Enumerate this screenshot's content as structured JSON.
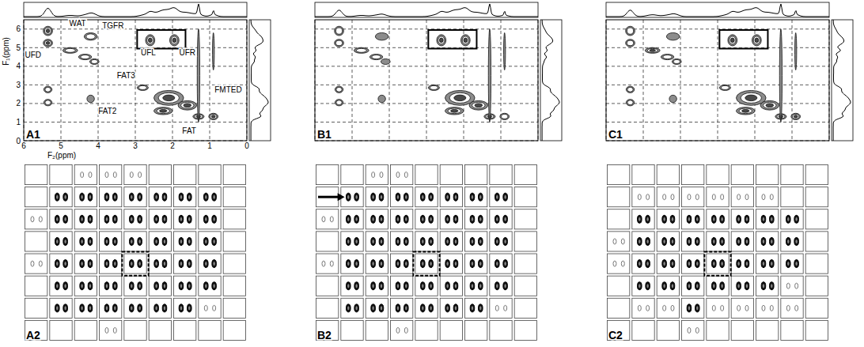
{
  "chart_data": [
    {
      "type": "contour",
      "label": "A1",
      "xlabel": "F₂(ppm)",
      "ylabel": "F₁(ppm)",
      "xlim": [
        6,
        0
      ],
      "ylim": [
        0,
        6.5
      ],
      "xticks": [
        6,
        5,
        4,
        3,
        2,
        1,
        0
      ],
      "yticks": [
        0,
        1,
        2,
        3,
        4,
        5,
        6
      ],
      "grid": true,
      "peaks": {
        "x": [
          5.35,
          5.35,
          5.35,
          5.35,
          4.75,
          4.35,
          4.1,
          4.2,
          4.2,
          2.6,
          1.95,
          2.8,
          2.1,
          2.25,
          1.6,
          1.3,
          0.9,
          1.3,
          0.9
        ],
        "y": [
          5.9,
          5.25,
          2.75,
          2.05,
          4.85,
          4.5,
          4.25,
          5.6,
          2.25,
          5.4,
          5.4,
          2.85,
          2.3,
          1.6,
          1.9,
          1.3,
          1.3,
          3.5,
          4.8
        ],
        "width": [
          0.25,
          0.25,
          0.22,
          0.22,
          0.4,
          0.35,
          0.25,
          0.35,
          0.2,
          0.25,
          0.25,
          0.3,
          0.8,
          0.5,
          0.5,
          0.3,
          0.25,
          0.07,
          0.05
        ],
        "height": [
          0.5,
          0.4,
          0.35,
          0.35,
          0.3,
          0.3,
          0.3,
          0.4,
          0.4,
          0.6,
          0.6,
          0.3,
          0.8,
          0.4,
          0.5,
          0.3,
          0.35,
          5.0,
          2.0
        ],
        "values": [
          3,
          3,
          2,
          2,
          2,
          2,
          2,
          2,
          1,
          3,
          3,
          2,
          3,
          3,
          3,
          3,
          3,
          1,
          1
        ]
      },
      "highlight": {
        "x": [
          2.95,
          1.65
        ],
        "y": [
          4.95,
          5.95
        ]
      },
      "annotations": [
        {
          "text": "UFD",
          "x": 5.75,
          "y": 4.45
        },
        {
          "text": "WAT",
          "x": 4.55,
          "y": 6.15
        },
        {
          "text": "TGFR",
          "x": 3.6,
          "y": 6.05
        },
        {
          "text": "UFL",
          "x": 2.65,
          "y": 4.6
        },
        {
          "text": "UFR",
          "x": 1.6,
          "y": 4.6
        },
        {
          "text": "FAT3",
          "x": 3.25,
          "y": 3.35
        },
        {
          "text": "FAT2",
          "x": 3.75,
          "y": 1.45
        },
        {
          "text": "FAT",
          "x": 1.55,
          "y": 0.4
        },
        {
          "text": "FMTED",
          "x": 0.5,
          "y": 2.6
        }
      ]
    },
    {
      "type": "contour",
      "label": "B1",
      "xlim": [
        6,
        0
      ],
      "ylim": [
        0,
        6.5
      ],
      "xticks": [
        6,
        5,
        4,
        3,
        2,
        1,
        0
      ],
      "yticks": [
        0,
        1,
        2,
        3,
        4,
        5,
        6
      ],
      "grid": true,
      "tick_labels": false,
      "peaks": {
        "x": [
          5.35,
          5.35,
          5.35,
          5.35,
          4.75,
          4.35,
          4.1,
          4.2,
          4.2,
          2.6,
          1.95,
          2.8,
          2.1,
          2.25,
          1.6,
          1.3,
          0.9,
          1.3,
          0.9
        ],
        "y": [
          5.9,
          5.25,
          2.75,
          2.05,
          4.85,
          4.5,
          4.25,
          5.6,
          2.25,
          5.4,
          5.4,
          2.85,
          2.3,
          1.6,
          1.9,
          1.3,
          1.3,
          3.5,
          4.8
        ],
        "width": [
          0.25,
          0.25,
          0.22,
          0.22,
          0.4,
          0.35,
          0.25,
          0.35,
          0.2,
          0.25,
          0.25,
          0.3,
          0.8,
          0.5,
          0.5,
          0.3,
          0.25,
          0.07,
          0.05
        ],
        "height": [
          0.5,
          0.4,
          0.35,
          0.35,
          0.3,
          0.3,
          0.3,
          0.4,
          0.4,
          0.6,
          0.6,
          0.3,
          0.8,
          0.4,
          0.5,
          0.3,
          0.35,
          5.0,
          2.0
        ],
        "values": [
          2,
          2,
          2,
          2,
          2,
          2,
          1,
          1,
          1,
          3,
          3,
          2,
          3,
          3,
          3,
          3,
          2,
          1,
          1
        ]
      },
      "highlight": {
        "x": [
          2.95,
          1.65
        ],
        "y": [
          4.95,
          5.95
        ]
      }
    },
    {
      "type": "contour",
      "label": "C1",
      "xlim": [
        6,
        0
      ],
      "ylim": [
        0,
        6.5
      ],
      "xticks": [
        6,
        5,
        4,
        3,
        2,
        1,
        0
      ],
      "yticks": [
        0,
        1,
        2,
        3,
        4,
        5,
        6
      ],
      "grid": true,
      "tick_labels": false,
      "peaks": {
        "x": [
          5.35,
          5.35,
          5.35,
          5.35,
          4.75,
          4.35,
          4.1,
          4.2,
          4.2,
          2.6,
          1.95,
          2.8,
          2.1,
          2.25,
          1.6,
          1.3,
          0.9,
          1.3,
          0.9
        ],
        "y": [
          5.9,
          5.25,
          2.75,
          2.05,
          4.85,
          4.5,
          4.25,
          5.6,
          2.25,
          5.4,
          5.4,
          2.85,
          2.3,
          1.6,
          1.9,
          1.3,
          1.3,
          3.5,
          4.8
        ],
        "width": [
          0.25,
          0.25,
          0.22,
          0.22,
          0.4,
          0.35,
          0.25,
          0.35,
          0.2,
          0.25,
          0.25,
          0.3,
          0.8,
          0.5,
          0.5,
          0.3,
          0.25,
          0.07,
          0.05
        ],
        "height": [
          0.5,
          0.4,
          0.35,
          0.35,
          0.3,
          0.3,
          0.3,
          0.4,
          0.4,
          0.6,
          0.6,
          0.3,
          0.8,
          0.4,
          0.5,
          0.3,
          0.35,
          5.0,
          2.0
        ],
        "values": [
          2,
          2,
          2,
          2,
          3,
          2,
          2,
          1,
          1,
          3,
          3,
          2,
          3,
          3,
          3,
          3,
          3,
          1,
          1
        ]
      },
      "highlight": {
        "x": [
          2.95,
          1.65
        ],
        "y": [
          4.95,
          5.95
        ]
      }
    }
  ],
  "grids": [
    {
      "label": "A2",
      "highlight": [
        4,
        4
      ],
      "cells": [
        [
          0,
          0,
          1,
          1,
          1,
          0,
          0,
          0,
          0
        ],
        [
          0,
          2,
          2,
          2,
          2,
          2,
          2,
          2,
          0
        ],
        [
          1,
          2,
          2,
          2,
          2,
          2,
          2,
          2,
          0
        ],
        [
          0,
          2,
          2,
          2,
          2,
          2,
          2,
          2,
          0
        ],
        [
          1,
          2,
          2,
          2,
          2,
          2,
          2,
          2,
          0
        ],
        [
          0,
          2,
          2,
          2,
          2,
          2,
          2,
          2,
          0
        ],
        [
          0,
          2,
          2,
          2,
          2,
          2,
          2,
          1,
          0
        ],
        [
          0,
          0,
          0,
          1,
          0,
          0,
          0,
          0,
          0
        ]
      ]
    },
    {
      "label": "B2",
      "highlight": [
        4,
        4
      ],
      "arrow": [
        1,
        1
      ],
      "cells": [
        [
          0,
          0,
          1,
          1,
          0,
          0,
          0,
          0,
          0
        ],
        [
          0,
          2,
          2,
          2,
          2,
          2,
          2,
          2,
          0
        ],
        [
          1,
          2,
          2,
          2,
          2,
          2,
          2,
          2,
          0
        ],
        [
          0,
          2,
          2,
          2,
          2,
          2,
          2,
          2,
          0
        ],
        [
          1,
          2,
          2,
          2,
          2,
          2,
          2,
          2,
          0
        ],
        [
          0,
          2,
          2,
          2,
          2,
          2,
          2,
          2,
          0
        ],
        [
          0,
          2,
          2,
          2,
          2,
          2,
          2,
          1,
          0
        ],
        [
          0,
          0,
          0,
          1,
          0,
          0,
          0,
          0,
          0
        ]
      ]
    },
    {
      "label": "C2",
      "highlight": [
        4,
        4
      ],
      "cells": [
        [
          0,
          0,
          0,
          0,
          0,
          0,
          0,
          0,
          0
        ],
        [
          0,
          1,
          1,
          1,
          1,
          1,
          1,
          0,
          0
        ],
        [
          0,
          2,
          2,
          2,
          2,
          2,
          2,
          2,
          0
        ],
        [
          1,
          2,
          2,
          2,
          2,
          2,
          2,
          2,
          0
        ],
        [
          1,
          2,
          2,
          2,
          2,
          2,
          2,
          2,
          0
        ],
        [
          0,
          2,
          2,
          2,
          2,
          2,
          2,
          1,
          0
        ],
        [
          0,
          1,
          1,
          2,
          1,
          1,
          1,
          1,
          0
        ],
        [
          0,
          0,
          0,
          1,
          0,
          0,
          0,
          0,
          0
        ]
      ]
    }
  ]
}
